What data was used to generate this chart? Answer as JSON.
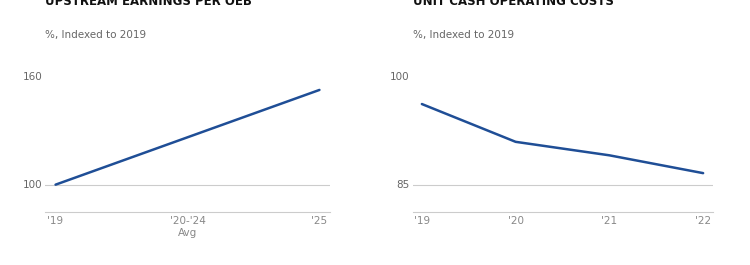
{
  "chart1": {
    "title": "UPSTREAM EARNINGS PER OEB",
    "subtitle": "%, Indexed to 2019",
    "top_label": "160",
    "x": [
      0,
      1
    ],
    "y": [
      100,
      152
    ],
    "xtick_positions": [
      0,
      0.5,
      1
    ],
    "xtick_labels": [
      "'19",
      "'20-'24\nAvg",
      "'25"
    ],
    "bottom_label": "100",
    "hline_y": 100,
    "ylim": [
      85,
      165
    ],
    "xlim": [
      -0.04,
      1.04
    ],
    "line_color": "#1f4e96",
    "line_width": 1.8
  },
  "chart2": {
    "title": "UNIT CASH OPERATING COSTS",
    "subtitle": "%, Indexed to 2019",
    "top_label": "100",
    "x": [
      0,
      1,
      2,
      3
    ],
    "y": [
      100,
      93.0,
      90.5,
      87.2
    ],
    "xtick_positions": [
      0,
      1,
      2,
      3
    ],
    "xtick_labels": [
      "'19",
      "'20",
      "'21",
      "'22"
    ],
    "bottom_label": "85",
    "hline_y": 85,
    "ylim": [
      80,
      107
    ],
    "xlim": [
      -0.1,
      3.1
    ],
    "line_color": "#1f4e96",
    "line_width": 1.8
  },
  "bg_color": "#ffffff",
  "title_fontsize": 8.5,
  "subtitle_fontsize": 7.5,
  "label_fontsize": 7.5,
  "tick_fontsize": 7.5,
  "tick_color": "#888888",
  "spine_color": "#cccccc",
  "title_color": "#111111",
  "subtitle_color": "#666666",
  "label_color": "#666666"
}
